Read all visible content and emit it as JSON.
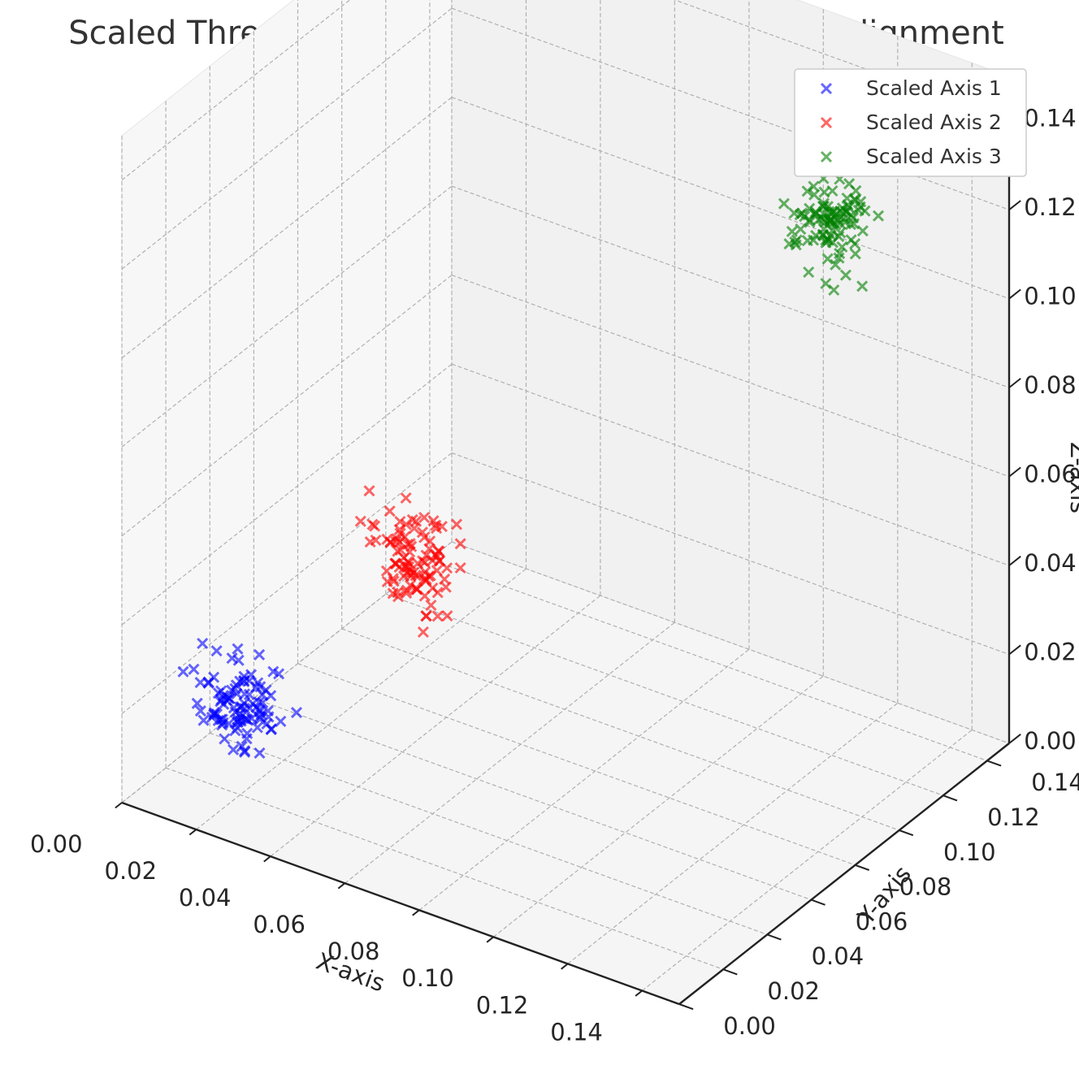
{
  "chart_data": {
    "type": "scatter",
    "projection": "3d",
    "title": "Scaled Three Axes Cold Fusion: Final Harmonic Alignment",
    "xlabel": "X-axis",
    "ylabel": "Y-axis",
    "zlabel": "Z-axis",
    "xlim": [
      0,
      0.15
    ],
    "ylim": [
      0,
      0.15
    ],
    "zlim": [
      0,
      0.15
    ],
    "x_ticks": [
      "0.00",
      "0.02",
      "0.04",
      "0.06",
      "0.08",
      "0.10",
      "0.12",
      "0.14"
    ],
    "y_ticks": [
      "0.00",
      "0.02",
      "0.04",
      "0.06",
      "0.08",
      "0.10",
      "0.12",
      "0.14"
    ],
    "z_ticks": [
      "0.00",
      "0.02",
      "0.04",
      "0.06",
      "0.08",
      "0.10",
      "0.12",
      "0.14"
    ],
    "grid": true,
    "legend_position": "top-right",
    "marker": "x",
    "series": [
      {
        "name": "Scaled Axis 1",
        "color": "#0000ff",
        "center": [
          0.02,
          0.02,
          0.02
        ],
        "spread": 0.005,
        "count": 100
      },
      {
        "name": "Scaled Axis 2",
        "color": "#ff0000",
        "center": [
          0.05,
          0.05,
          0.05
        ],
        "spread": 0.005,
        "count": 100
      },
      {
        "name": "Scaled Axis 3",
        "color": "#008000",
        "center": [
          0.12,
          0.12,
          0.12
        ],
        "spread": 0.005,
        "count": 100
      }
    ]
  }
}
